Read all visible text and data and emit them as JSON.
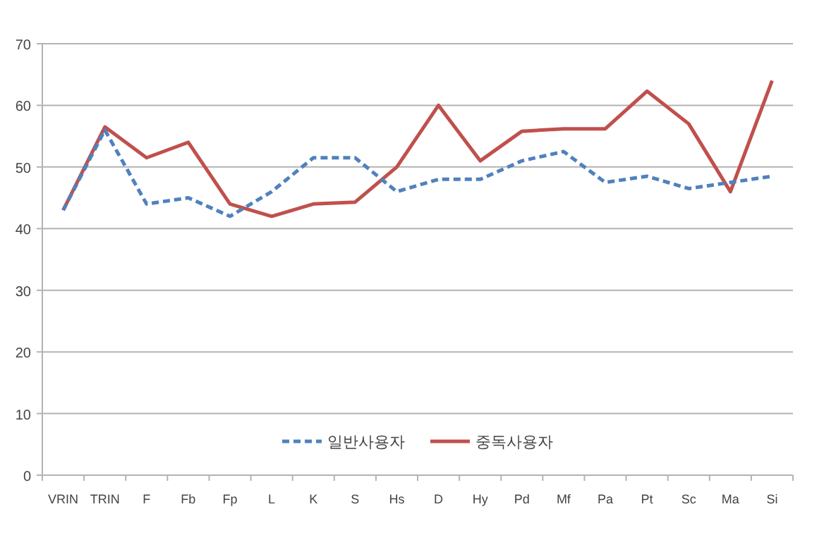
{
  "chart_data": {
    "type": "line",
    "categories": [
      "VRIN",
      "TRIN",
      "F",
      "Fb",
      "Fp",
      "L",
      "K",
      "S",
      "Hs",
      "D",
      "Hy",
      "Pd",
      "Mf",
      "Pa",
      "Pt",
      "Sc",
      "Ma",
      "Si"
    ],
    "series": [
      {
        "name": "일반사용자",
        "color": "#4f81bd",
        "line_style": "dashed",
        "values": [
          43,
          56,
          44,
          45,
          42,
          46,
          51.5,
          51.5,
          46,
          48,
          48,
          51,
          52.5,
          47.5,
          48.5,
          46.5,
          47.5,
          48.5
        ]
      },
      {
        "name": "중독사용자",
        "color": "#c0504d",
        "line_style": "solid",
        "values": [
          43,
          56.5,
          51.5,
          54,
          44,
          42,
          44,
          44.3,
          50,
          60,
          51,
          55.8,
          56.2,
          56.2,
          62.3,
          57,
          46,
          64
        ]
      }
    ],
    "ylim": [
      0,
      70
    ],
    "yticks": [
      0,
      10,
      20,
      30,
      40,
      50,
      60,
      70
    ],
    "grid": "y",
    "legend": "bottom",
    "marker": "none"
  }
}
